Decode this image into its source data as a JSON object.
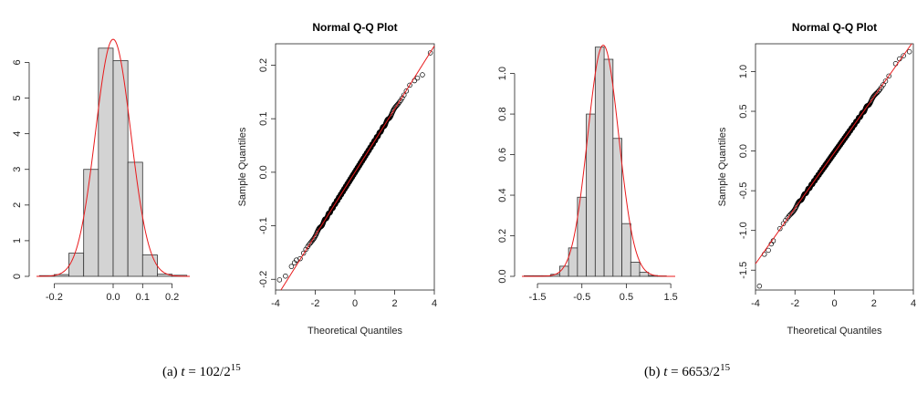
{
  "captions": [
    {
      "prefix": "(a) ",
      "var": "t",
      "mid": " = 102/2",
      "sup": "15"
    },
    {
      "prefix": "(b) ",
      "var": "t",
      "mid": " = 6653/2",
      "sup": "15"
    }
  ],
  "colors": {
    "bar_fill": "#d3d3d3",
    "bar_stroke": "#333333",
    "curve": "#e8191b",
    "points": "#000000"
  },
  "chart_data": [
    {
      "type": "bar",
      "panel": "a-histogram",
      "title": "",
      "bin_edges": [
        -0.25,
        -0.2,
        -0.15,
        -0.1,
        -0.05,
        0.0,
        0.05,
        0.1,
        0.15,
        0.2,
        0.25
      ],
      "values": [
        0.02,
        0.05,
        0.65,
        3.0,
        6.4,
        6.05,
        3.2,
        0.6,
        0.06,
        0.03
      ],
      "density_curve": {
        "mean": 0.0,
        "sd": 0.06
      },
      "xlim": [
        -0.26,
        0.26
      ],
      "ylim": [
        0,
        6.6
      ],
      "xticks": [
        {
          "v": -0.2,
          "t": "-0.2"
        },
        {
          "v": 0,
          "t": "0.0"
        },
        {
          "v": 0.1,
          "t": "0.1"
        },
        {
          "v": 0.2,
          "t": "0.2"
        }
      ],
      "yticks": [
        {
          "v": 0,
          "t": "0"
        },
        {
          "v": 1,
          "t": "1"
        },
        {
          "v": 2,
          "t": "2"
        },
        {
          "v": 3,
          "t": "3"
        },
        {
          "v": 4,
          "t": "4"
        },
        {
          "v": 5,
          "t": "5"
        },
        {
          "v": 6,
          "t": "6"
        }
      ]
    },
    {
      "type": "scatter",
      "panel": "a-qq",
      "title": "Normal Q-Q Plot",
      "xlabel": "Theoretical Quantiles",
      "ylabel": "Sample Quantiles",
      "qq_line": {
        "intercept": 0.0,
        "slope": 0.059
      },
      "x_range": [
        -3.9,
        3.8
      ],
      "tail_points": [
        [
          -3.8,
          -0.201
        ],
        [
          -3.5,
          -0.194
        ],
        [
          -3.2,
          -0.176
        ],
        [
          -3.05,
          -0.169
        ],
        [
          -2.95,
          -0.164
        ],
        [
          3.0,
          0.171
        ],
        [
          3.15,
          0.176
        ],
        [
          3.4,
          0.182
        ],
        [
          3.8,
          0.223
        ]
      ],
      "xlim": [
        -4,
        4
      ],
      "ylim": [
        -0.22,
        0.24
      ],
      "xticks": [
        {
          "v": -4,
          "t": "-4"
        },
        {
          "v": -2,
          "t": "-2"
        },
        {
          "v": 0,
          "t": "0"
        },
        {
          "v": 2,
          "t": "2"
        },
        {
          "v": 4,
          "t": "4"
        }
      ],
      "yticks": [
        {
          "v": -0.2,
          "t": "-0.2"
        },
        {
          "v": -0.1,
          "t": "-0.1"
        },
        {
          "v": 0,
          "t": "0.0"
        },
        {
          "v": 0.1,
          "t": "0.1"
        },
        {
          "v": 0.2,
          "t": "0.2"
        }
      ]
    },
    {
      "type": "bar",
      "panel": "b-histogram",
      "title": "",
      "bin_edges": [
        -1.8,
        -1.6,
        -1.4,
        -1.2,
        -1.0,
        -0.8,
        -0.6,
        -0.4,
        -0.2,
        0.0,
        0.2,
        0.4,
        0.6,
        0.8,
        1.0,
        1.2,
        1.4
      ],
      "values": [
        0.003,
        0.003,
        0.003,
        0.01,
        0.05,
        0.14,
        0.39,
        0.8,
        1.13,
        1.07,
        0.68,
        0.26,
        0.07,
        0.02,
        0.004,
        0.002
      ],
      "density_curve": {
        "mean": -0.02,
        "sd": 0.35
      },
      "xlim": [
        -1.85,
        1.6
      ],
      "ylim": [
        0,
        1.16
      ],
      "xticks": [
        {
          "v": -1.5,
          "t": "-1.5"
        },
        {
          "v": -0.5,
          "t": "-0.5"
        },
        {
          "v": 0.5,
          "t": "0.5"
        },
        {
          "v": 1.5,
          "t": "1.5"
        }
      ],
      "yticks": [
        {
          "v": 0,
          "t": "0.0"
        },
        {
          "v": 0.2,
          "t": "0.2"
        },
        {
          "v": 0.4,
          "t": "0.4"
        },
        {
          "v": 0.6,
          "t": "0.6"
        },
        {
          "v": 0.8,
          "t": "0.8"
        },
        {
          "v": 1.0,
          "t": "1.0"
        }
      ]
    },
    {
      "type": "scatter",
      "panel": "b-qq",
      "title": "Normal Q-Q Plot",
      "xlabel": "Theoretical Quantiles",
      "ylabel": "Sample Quantiles",
      "qq_line": {
        "intercept": -0.02,
        "slope": 0.35
      },
      "x_range": [
        -3.9,
        3.8
      ],
      "tail_points": [
        [
          -3.8,
          -1.7
        ],
        [
          -3.55,
          -1.3
        ],
        [
          -3.35,
          -1.25
        ],
        [
          -3.2,
          -1.17
        ],
        [
          -3.1,
          -1.13
        ],
        [
          3.1,
          1.1
        ],
        [
          3.3,
          1.16
        ],
        [
          3.5,
          1.2
        ],
        [
          3.8,
          1.25
        ]
      ],
      "xlim": [
        -4,
        4
      ],
      "ylim": [
        -1.75,
        1.35
      ],
      "xticks": [
        {
          "v": -4,
          "t": "-4"
        },
        {
          "v": -2,
          "t": "-2"
        },
        {
          "v": 0,
          "t": "0"
        },
        {
          "v": 2,
          "t": "2"
        },
        {
          "v": 4,
          "t": "4"
        }
      ],
      "yticks": [
        {
          "v": -1.5,
          "t": "-1.5"
        },
        {
          "v": -1.0,
          "t": "-1.0"
        },
        {
          "v": -0.5,
          "t": "-0.5"
        },
        {
          "v": 0,
          "t": "0.0"
        },
        {
          "v": 0.5,
          "t": "0.5"
        },
        {
          "v": 1.0,
          "t": "1.0"
        }
      ]
    }
  ]
}
